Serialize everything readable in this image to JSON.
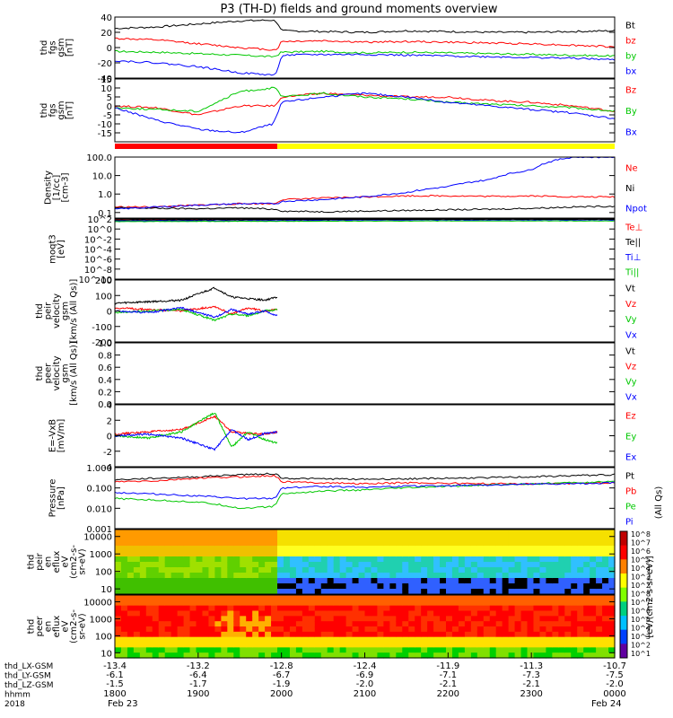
{
  "title": "P3 (TH-D) fields and ground moments overview",
  "x_axis": {
    "ticks": [
      "1800",
      "1900",
      "2000",
      "2100",
      "2200",
      "2300",
      "0000"
    ],
    "lx": [
      "-13.4",
      "-13.2",
      "-12.8",
      "-12.4",
      "-11.9",
      "-11.3",
      "-10.7"
    ],
    "ly": [
      "-6.1",
      "-6.4",
      "-6.7",
      "-6.9",
      "-7.1",
      "-7.3",
      "-7.5"
    ],
    "lz": [
      "-1.5",
      "-1.7",
      "-1.9",
      "-2.0",
      "-2.1",
      "-2.1",
      "-2.0"
    ],
    "row_labels": [
      "thd_LX-GSM",
      "thd_LY-GSM",
      "thd_LZ-GSM",
      "hhmm",
      "2018"
    ],
    "start_date": "Feb 23",
    "end_date": "Feb 24"
  },
  "colorbar": {
    "label": "[eV/(cm2-s-sr-eV)]",
    "side_label": "(All Qs)",
    "ticks_upper": [
      "10^8",
      "10^7",
      "10^6",
      "10^5",
      "10^4",
      "10^3",
      "10^2"
    ],
    "ticks_lower": [
      "10^8",
      "10^7",
      "10^6",
      "10^5",
      "10^4",
      "10^3",
      "10^2",
      "10^1"
    ]
  },
  "chart_data": [
    {
      "type": "line",
      "ylabel": [
        "thd",
        "fgs",
        "gsm",
        "[nT]"
      ],
      "ylim": [
        -40,
        40
      ],
      "yticks": [
        "40",
        "20",
        "0",
        "-20",
        "-40"
      ],
      "yscale": "linear",
      "x": [
        18.0,
        18.5,
        19.0,
        19.5,
        19.9,
        19.95,
        20.0,
        20.5,
        21.0,
        21.5,
        22.0,
        22.5,
        23.0,
        23.5,
        24.0
      ],
      "series": [
        {
          "name": "Bt",
          "color": "#000000",
          "values": [
            25,
            27,
            31,
            35,
            36,
            33,
            22,
            21,
            20,
            22,
            21,
            20,
            20,
            21,
            22
          ]
        },
        {
          "name": "bz",
          "color": "#ff0000",
          "values": [
            12,
            10,
            5,
            0,
            -3,
            -2,
            8,
            9,
            7,
            8,
            7,
            6,
            5,
            3,
            1
          ]
        },
        {
          "name": "by",
          "color": "#00c800",
          "values": [
            -5,
            -6,
            -8,
            -10,
            -12,
            -10,
            -6,
            -5,
            -7,
            -6,
            -7,
            -8,
            -9,
            -10,
            -11
          ]
        },
        {
          "name": "bx",
          "color": "#0000ff",
          "values": [
            -17,
            -20,
            -25,
            -33,
            -36,
            -32,
            -10,
            -9,
            -9,
            -10,
            -11,
            -12,
            -13,
            -14,
            -16
          ]
        }
      ]
    },
    {
      "type": "line",
      "ylabel": [
        "thd",
        "fgs",
        "gsm",
        "[nT]"
      ],
      "ylim": [
        -20,
        15
      ],
      "yticks": [
        "15",
        "10",
        "5",
        "0",
        "-5",
        "-10",
        "-15"
      ],
      "yscale": "linear",
      "x": [
        18.0,
        18.5,
        19.0,
        19.5,
        19.9,
        19.95,
        20.0,
        20.5,
        21.0,
        21.5,
        22.0,
        22.5,
        23.0,
        23.5,
        24.0
      ],
      "series": [
        {
          "name": "Bz",
          "color": "#ff0000",
          "values": [
            0,
            -1,
            -5,
            0,
            0,
            1,
            5,
            7,
            6,
            5,
            5,
            3,
            2,
            0,
            -3
          ]
        },
        {
          "name": "By",
          "color": "#00c800",
          "values": [
            -1,
            -2,
            -3,
            8,
            10,
            9,
            5,
            7,
            5,
            4,
            2,
            1,
            0,
            -1,
            -3
          ]
        },
        {
          "name": "Bx",
          "color": "#0000ff",
          "values": [
            -1,
            -8,
            -13,
            -15,
            -10,
            -5,
            2,
            5,
            7,
            5,
            2,
            0,
            -2,
            -4,
            -7
          ]
        }
      ]
    },
    {
      "type": "line",
      "ylabel": [
        "Density",
        "[1/cc]",
        "[cm-3]"
      ],
      "ylim": [
        0.05,
        100
      ],
      "yticks": [
        "100.0",
        "10.0",
        "1.0",
        "0.1"
      ],
      "yscale": "log",
      "x": [
        18.0,
        18.5,
        19.0,
        19.5,
        19.9,
        19.95,
        20.0,
        20.5,
        21.0,
        21.5,
        22.0,
        22.5,
        23.0,
        23.5,
        24.0
      ],
      "series": [
        {
          "name": "Ne",
          "color": "#ff0000",
          "values": [
            0.2,
            0.2,
            0.25,
            0.3,
            0.3,
            0.35,
            0.5,
            0.6,
            0.7,
            0.8,
            0.8,
            0.75,
            0.8,
            0.7,
            0.7
          ]
        },
        {
          "name": "Ni",
          "color": "#000000",
          "values": [
            0.18,
            0.17,
            0.16,
            0.18,
            0.15,
            0.15,
            0.12,
            0.11,
            0.12,
            0.13,
            0.14,
            0.15,
            0.17,
            0.2,
            0.22
          ]
        },
        {
          "name": "Npot",
          "color": "#0000ff",
          "values": [
            0.15,
            0.2,
            0.25,
            0.3,
            0.3,
            0.3,
            0.4,
            0.5,
            0.7,
            1.2,
            2.5,
            6,
            20,
            100,
            100
          ]
        }
      ]
    },
    {
      "type": "line",
      "ylabel": [
        "moqt3",
        "[eV]"
      ],
      "ylim": [
        1e-10,
        100
      ],
      "yticks": [
        "10^2",
        "10^0",
        "10^-2",
        "10^-4",
        "10^-6",
        "10^-8",
        "10^-10"
      ],
      "yscale": "log",
      "x": [
        18.0,
        20.0,
        22.0,
        24.0
      ],
      "series": [
        {
          "name": "Te⊥",
          "color": "#ff0000",
          "values": [
            80,
            90,
            100,
            100
          ]
        },
        {
          "name": "Te||",
          "color": "#000000",
          "values": [
            60,
            70,
            80,
            80
          ]
        },
        {
          "name": "Ti⊥",
          "color": "#0000ff",
          "values": [
            40,
            45,
            50,
            50
          ]
        },
        {
          "name": "Ti||",
          "color": "#00c800",
          "values": [
            30,
            35,
            40,
            40
          ]
        }
      ]
    },
    {
      "type": "line",
      "ylabel": [
        "thd",
        "peir",
        "velocity",
        "gsm",
        "[km/s (All Qs)]"
      ],
      "ylim": [
        -200,
        200
      ],
      "yticks": [
        "200",
        "100",
        "0",
        "-100",
        "-200"
      ],
      "yscale": "linear",
      "x": [
        18.0,
        18.4,
        18.8,
        19.2,
        19.4,
        19.6,
        19.8,
        19.95
      ],
      "series": [
        {
          "name": "Vt",
          "color": "#000000",
          "values": [
            50,
            60,
            70,
            150,
            90,
            80,
            70,
            90
          ]
        },
        {
          "name": "Vz",
          "color": "#ff0000",
          "values": [
            20,
            10,
            0,
            30,
            -20,
            20,
            0,
            10
          ]
        },
        {
          "name": "Vy",
          "color": "#00c800",
          "values": [
            -10,
            0,
            10,
            -60,
            -20,
            -30,
            0,
            10
          ]
        },
        {
          "name": "Vx",
          "color": "#0000ff",
          "values": [
            0,
            -10,
            20,
            -40,
            10,
            -20,
            0,
            -30
          ]
        }
      ]
    },
    {
      "type": "line",
      "ylabel": [
        "thd",
        "peer",
        "velocity",
        "gsm",
        "[km/s (All Qs)]"
      ],
      "ylim": [
        0,
        1
      ],
      "yticks": [
        "1.0",
        "0.8",
        "0.6",
        "0.4",
        "0.2",
        "0.0"
      ],
      "yscale": "linear",
      "x": [],
      "series": [
        {
          "name": "Vt",
          "color": "#000000",
          "values": []
        },
        {
          "name": "Vz",
          "color": "#ff0000",
          "values": []
        },
        {
          "name": "Vy",
          "color": "#00c800",
          "values": []
        },
        {
          "name": "Vx",
          "color": "#0000ff",
          "values": []
        }
      ]
    },
    {
      "type": "line",
      "ylabel": [
        "E=-VxB",
        "[mV/m]"
      ],
      "ylim": [
        -4,
        4
      ],
      "yticks": [
        "4",
        "2",
        "0",
        "-2",
        "-4"
      ],
      "yscale": "linear",
      "x": [
        18.0,
        18.4,
        18.8,
        19.2,
        19.4,
        19.6,
        19.8,
        19.95
      ],
      "series": [
        {
          "name": "Ez",
          "color": "#ff0000",
          "values": [
            0.2,
            0.5,
            0.8,
            2.5,
            0.5,
            0.3,
            0.2,
            0.5
          ]
        },
        {
          "name": "Ey",
          "color": "#00c800",
          "values": [
            0,
            -0.3,
            0.5,
            3.0,
            -1.5,
            0.5,
            -0.5,
            -1.0
          ]
        },
        {
          "name": "Ex",
          "color": "#0000ff",
          "values": [
            0,
            0.2,
            -0.3,
            -1.8,
            0.8,
            -0.5,
            0.3,
            0.5
          ]
        }
      ]
    },
    {
      "type": "line",
      "ylabel": [
        "Pressure",
        "[nPa]"
      ],
      "ylim": [
        0.001,
        1
      ],
      "yticks": [
        "1.000",
        "0.100",
        "0.010",
        "0.001"
      ],
      "yscale": "log",
      "x": [
        18.0,
        18.5,
        19.0,
        19.5,
        19.9,
        19.95,
        20.0,
        20.5,
        21.0,
        21.5,
        22.0,
        22.5,
        23.0,
        23.5,
        24.0
      ],
      "series": [
        {
          "name": "Pt",
          "color": "#000000",
          "values": [
            0.25,
            0.3,
            0.35,
            0.45,
            0.5,
            0.45,
            0.3,
            0.28,
            0.27,
            0.28,
            0.3,
            0.32,
            0.35,
            0.4,
            0.45
          ]
        },
        {
          "name": "Pb",
          "color": "#ff0000",
          "values": [
            0.2,
            0.22,
            0.3,
            0.35,
            0.4,
            0.35,
            0.2,
            0.18,
            0.16,
            0.18,
            0.17,
            0.16,
            0.16,
            0.17,
            0.18
          ]
        },
        {
          "name": "Pe",
          "color": "#00c800",
          "values": [
            0.03,
            0.025,
            0.02,
            0.01,
            0.012,
            0.02,
            0.05,
            0.07,
            0.08,
            0.1,
            0.12,
            0.14,
            0.16,
            0.18,
            0.2
          ]
        },
        {
          "name": "Pi",
          "color": "#0000ff",
          "values": [
            0.06,
            0.05,
            0.04,
            0.03,
            0.03,
            0.04,
            0.1,
            0.12,
            0.11,
            0.12,
            0.13,
            0.14,
            0.15,
            0.16,
            0.18
          ]
        }
      ]
    },
    {
      "type": "heatmap",
      "ylabel": [
        "thd",
        "peir",
        "en",
        "eflux",
        "eV",
        "(cm2-s-",
        "sr-eV)"
      ],
      "yticks": [
        "10000",
        "1000",
        "100",
        "10"
      ],
      "ylim": [
        5,
        25000
      ],
      "yscale": "log"
    },
    {
      "type": "heatmap",
      "ylabel": [
        "thd",
        "peer",
        "en",
        "eflux",
        "eV",
        "(cm2-s-",
        "sr-eV)"
      ],
      "yticks": [
        "10000",
        "1000",
        "100",
        "10"
      ],
      "ylim": [
        5,
        25000
      ],
      "yscale": "log"
    }
  ]
}
